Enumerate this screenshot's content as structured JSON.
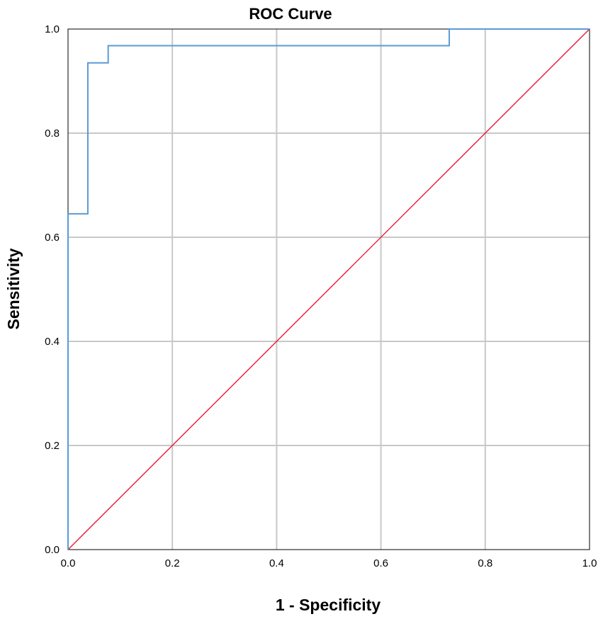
{
  "chart_data": {
    "type": "line",
    "title": "ROC Curve",
    "xlabel": "1 - Specificity",
    "ylabel": "Sensitivity",
    "xlim": [
      0,
      1
    ],
    "ylim": [
      0,
      1
    ],
    "x_ticks": [
      "0.0",
      "0.2",
      "0.4",
      "0.6",
      "0.8",
      "1.0"
    ],
    "y_ticks": [
      "0.0",
      "0.2",
      "0.4",
      "0.6",
      "0.8",
      "1.0"
    ],
    "grid": true,
    "legend": "none",
    "series": [
      {
        "color": "#5b9bd5",
        "x": [
          0.0,
          0.0,
          0.038,
          0.038,
          0.077,
          0.077,
          0.731,
          0.731,
          1.0
        ],
        "y": [
          0.0,
          0.645,
          0.645,
          0.935,
          0.935,
          0.968,
          0.968,
          1.0,
          1.0
        ]
      },
      {
        "color": "#e8183c",
        "x": [
          0.0,
          1.0
        ],
        "y": [
          0.0,
          1.0
        ]
      }
    ]
  }
}
